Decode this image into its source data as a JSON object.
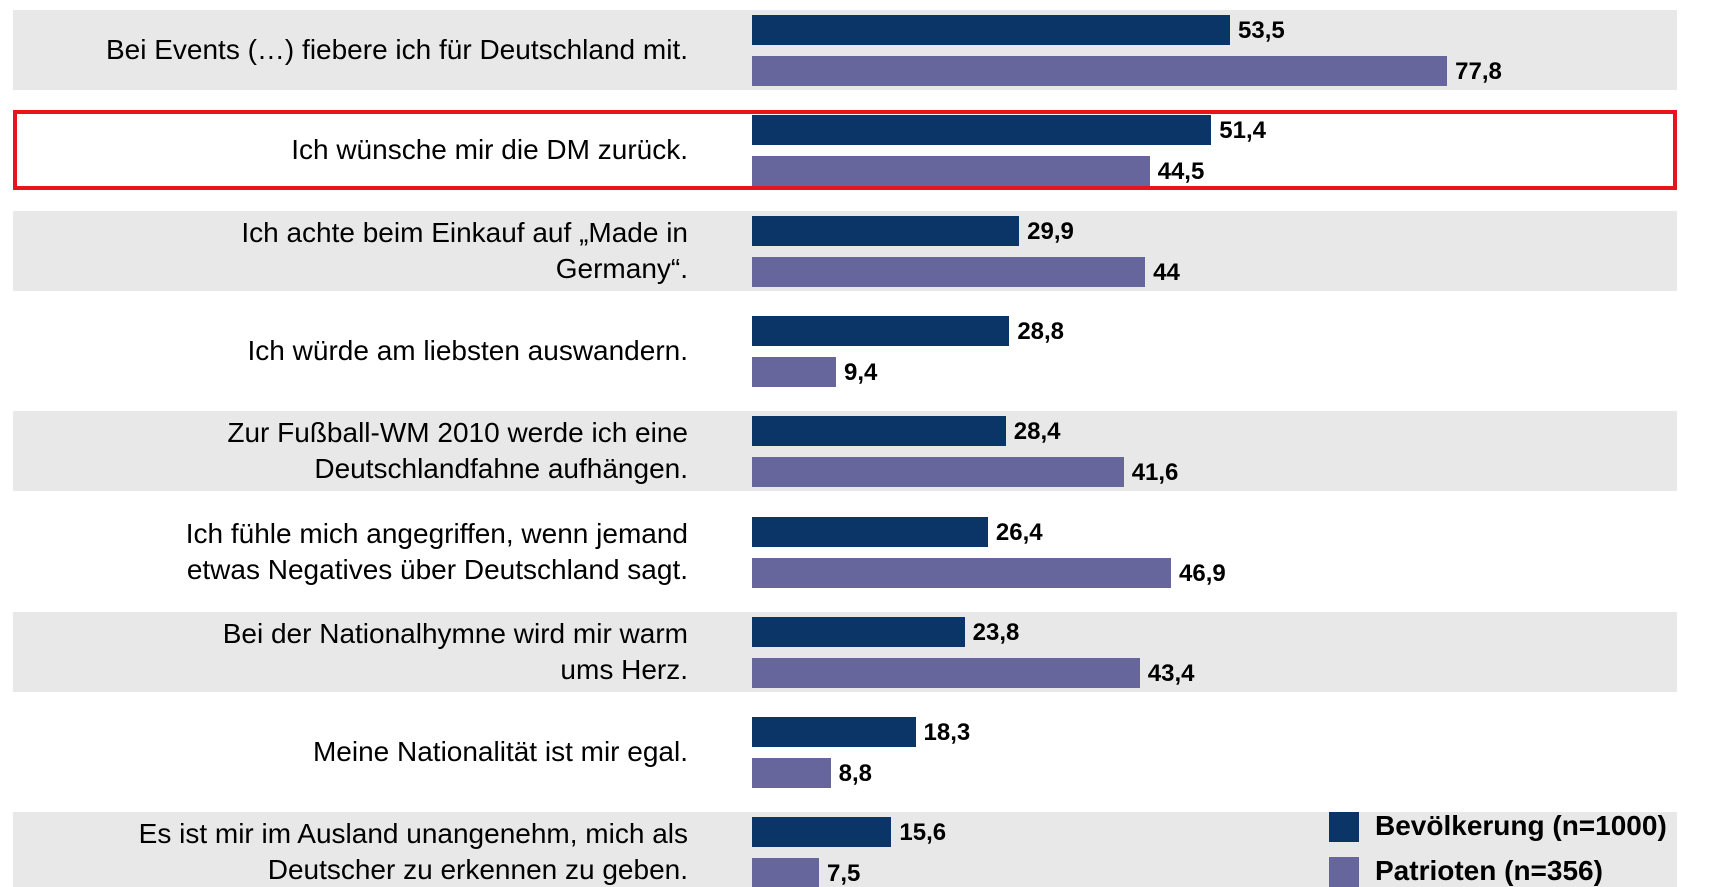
{
  "chart_data": {
    "type": "bar",
    "orientation": "horizontal",
    "categories": [
      "Bei Events (…) fiebere ich für Deutschland mit.",
      "Ich wünsche mir die DM zurück.",
      "Ich achte beim Einkauf auf „Made in\nGermany“.",
      "Ich würde am liebsten auswandern.",
      "Zur Fußball-WM 2010 werde ich eine\nDeutschlandfahne aufhängen.",
      "Ich fühle mich angegriffen, wenn jemand\netwas Negatives über Deutschland sagt.",
      "Bei der Nationalhymne wird mir warm\nums Herz.",
      "Meine Nationalität ist mir egal.",
      "Es ist mir im Ausland unangenehm, mich als\nDeutscher zu erkennen zu geben."
    ],
    "series": [
      {
        "name": "Bevölkerung (n=1000)",
        "color": "#0b3566",
        "values": [
          53.5,
          51.4,
          29.9,
          28.8,
          28.4,
          26.4,
          23.8,
          18.3,
          15.6
        ],
        "value_labels": [
          "53,5",
          "51,4",
          "29,9",
          "28,8",
          "28,4",
          "26,4",
          "23,8",
          "18,3",
          "15,6"
        ]
      },
      {
        "name": "Patrioten (n=356)",
        "color": "#67669c",
        "values": [
          77.8,
          44.5,
          44,
          9.4,
          41.6,
          46.9,
          43.4,
          8.8,
          7.5
        ],
        "value_labels": [
          "77,8",
          "44,5",
          "44",
          "9,4",
          "41,6",
          "46,9",
          "43,4",
          "8,8",
          "7,5"
        ]
      }
    ],
    "highlight_index": 1,
    "highlight_color": "#e8141b",
    "legend": "lower right"
  }
}
